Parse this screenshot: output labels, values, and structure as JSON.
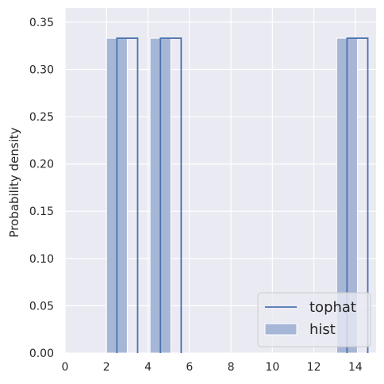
{
  "chart_data": {
    "type": "bar",
    "xlabel": "",
    "ylabel": "Probability density",
    "xlim": [
      0,
      15
    ],
    "ylim": [
      0,
      0.365
    ],
    "xticks": [
      "0",
      "2",
      "4",
      "6",
      "8",
      "10",
      "12",
      "14"
    ],
    "yticks": [
      "0.00",
      "0.05",
      "0.10",
      "0.15",
      "0.20",
      "0.25",
      "0.30",
      "0.35"
    ],
    "grid": true,
    "legend_position": "lower-right",
    "histogram": {
      "name": "hist",
      "bins": [
        {
          "x0": 2.0,
          "x1": 3.0,
          "density": 0.333
        },
        {
          "x0": 4.1,
          "x1": 5.1,
          "density": 0.333
        },
        {
          "x0": 13.1,
          "x1": 14.1,
          "density": 0.333
        }
      ]
    },
    "tophat": {
      "name": "tophat",
      "steps": [
        {
          "x0": 2.5,
          "x1": 3.5,
          "density": 0.333
        },
        {
          "x0": 4.6,
          "x1": 5.6,
          "density": 0.333
        },
        {
          "x0": 13.6,
          "x1": 14.6,
          "density": 0.333
        }
      ]
    },
    "rug": [
      2.5,
      4.6,
      13.6
    ],
    "colors": {
      "background": "#eaeaf2",
      "grid": "#ffffff",
      "hist_fill": "#a6b6d6",
      "hist_edge": "#ffffff",
      "line": "#4c72b0"
    }
  }
}
